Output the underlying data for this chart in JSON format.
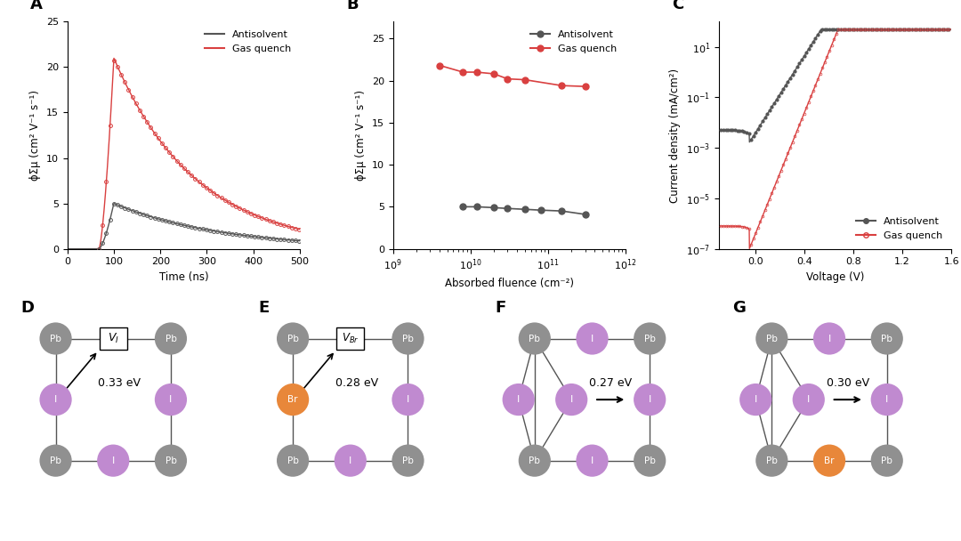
{
  "panel_A": {
    "label": "A",
    "xlabel": "Time (ns)",
    "ylabel": "ϕΣμ (cm² V⁻¹ s⁻¹)",
    "xlim": [
      0,
      500
    ],
    "ylim": [
      0,
      25
    ],
    "yticks": [
      0,
      5,
      10,
      15,
      20,
      25
    ],
    "xticks": [
      0,
      100,
      200,
      300,
      400,
      500
    ],
    "antisolvent_color": "#555555",
    "gasquench_color": "#d94040",
    "legend_labels": [
      "Antisolvent",
      "Gas quench"
    ]
  },
  "panel_B": {
    "label": "B",
    "xlabel": "Absorbed fluence (cm⁻²)",
    "ylabel": "ϕΣμ (cm² V⁻¹ s⁻¹)",
    "ylim": [
      0,
      27
    ],
    "yticks": [
      0,
      5,
      10,
      15,
      20,
      25
    ],
    "antisolvent_color": "#555555",
    "gasquench_color": "#d94040",
    "legend_labels": [
      "Antisolvent",
      "Gas quench"
    ],
    "anti_x": [
      8000000000.0,
      12000000000.0,
      20000000000.0,
      30000000000.0,
      50000000000.0,
      80000000000.0,
      150000000000.0,
      300000000000.0
    ],
    "anti_y": [
      5.0,
      5.0,
      4.9,
      4.8,
      4.7,
      4.6,
      4.5,
      4.1
    ],
    "gas_x": [
      4000000000.0,
      8000000000.0,
      12000000000.0,
      20000000000.0,
      30000000000.0,
      50000000000.0,
      150000000000.0,
      300000000000.0
    ],
    "gas_y": [
      21.8,
      21.0,
      21.0,
      20.8,
      20.2,
      20.1,
      19.4,
      19.3
    ]
  },
  "panel_C": {
    "label": "C",
    "xlabel": "Voltage (V)",
    "ylabel": "Current density (mA/cm²)",
    "xlim": [
      -0.3,
      1.6
    ],
    "xticks": [
      0.0,
      0.4,
      0.8,
      1.2,
      1.6
    ],
    "antisolvent_color": "#555555",
    "gasquench_color": "#d94040",
    "legend_labels": [
      "Antisolvent",
      "Gas quench"
    ]
  },
  "panels_DE": {
    "energy_D": "0.33 eV",
    "energy_E": "0.28 eV",
    "label_D": "D",
    "label_E": "E"
  },
  "panels_FG": {
    "energy_F": "0.27 eV",
    "energy_G": "0.30 eV",
    "label_F": "F",
    "label_G": "G"
  },
  "colors": {
    "Pb": "#909090",
    "I": "#c08ad0",
    "Br": "#e8873a",
    "bond": "#555555"
  },
  "figure_bg": "#ffffff"
}
